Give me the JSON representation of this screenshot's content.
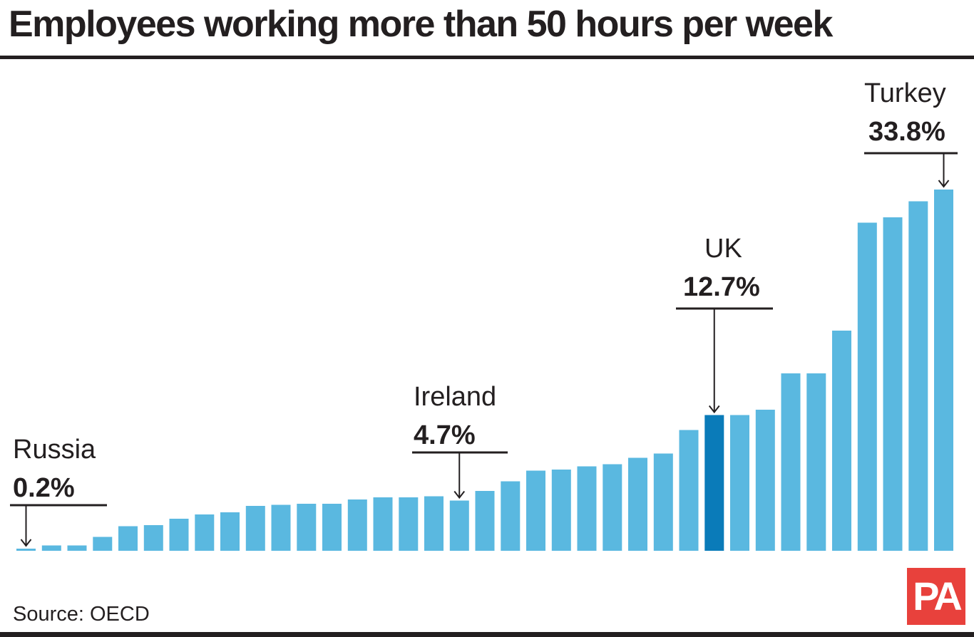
{
  "title": "Employees working more than 50 hours per week",
  "source": "Source: OECD",
  "logo": {
    "text": "PA",
    "color": "#e8413c"
  },
  "chart_data": {
    "type": "bar",
    "title": "Employees working more than 50 hours per week",
    "xlabel": "",
    "ylabel": "",
    "unit": "%",
    "ylim": [
      0,
      40
    ],
    "grid": false,
    "legend": "none",
    "colors": {
      "bar": "#5ab8e0",
      "highlight": "#0a7bb9"
    },
    "values": [
      0.2,
      0.5,
      0.5,
      1.3,
      2.3,
      2.4,
      3.0,
      3.4,
      3.6,
      4.2,
      4.3,
      4.4,
      4.4,
      4.8,
      5.0,
      5.0,
      5.1,
      4.7,
      5.6,
      6.5,
      7.5,
      7.6,
      7.9,
      8.1,
      8.7,
      9.1,
      11.3,
      12.7,
      12.7,
      13.2,
      16.6,
      16.6,
      20.6,
      30.7,
      31.2,
      32.7,
      33.8
    ],
    "highlight_index": 27,
    "callouts": [
      {
        "index": 0,
        "name": "Russia",
        "value_label": "0.2%"
      },
      {
        "index": 17,
        "name": "Ireland",
        "value_label": "4.7%"
      },
      {
        "index": 27,
        "name": "UK",
        "value_label": "12.7%"
      },
      {
        "index": 36,
        "name": "Turkey",
        "value_label": "33.8%"
      }
    ]
  }
}
